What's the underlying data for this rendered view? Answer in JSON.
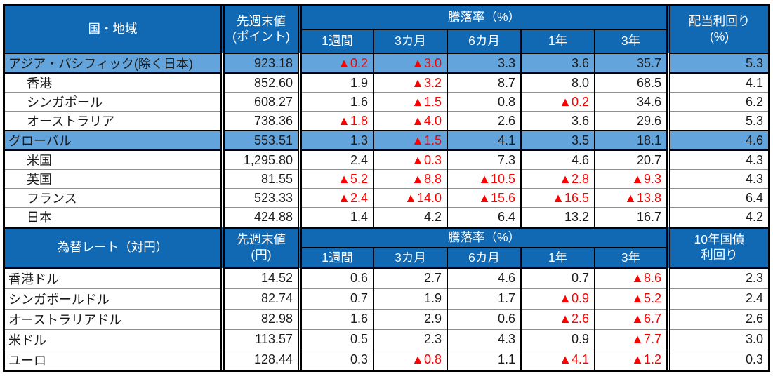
{
  "colors": {
    "header_bg": "#1169B4",
    "header_text": "#FFFFFF",
    "highlight_bg": "#62A4DB",
    "negative": "#FF0000",
    "text": "#1A1A1A",
    "row_separator": "#8F8F8F",
    "border": "#000000"
  },
  "negative_marker": "▲",
  "sections": [
    {
      "header": {
        "title": "国・地域",
        "value_line1": "先週末値",
        "value_line2": "(ポイント)",
        "group": "騰落率（%）",
        "periods": [
          "1週間",
          "3カ月",
          "6カ月",
          "1年",
          "3年"
        ],
        "last_line1": "配当利回り",
        "last_line2": "(%)"
      },
      "rows": [
        {
          "name": "アジア・パシフィック(除く日本)",
          "highlight": true,
          "indent": false,
          "values": [
            "923.18",
            "▲0.2",
            "▲3.0",
            "3.3",
            "3.6",
            "35.7",
            "5.3"
          ]
        },
        {
          "name": "香港",
          "highlight": false,
          "indent": true,
          "values": [
            "852.60",
            "1.9",
            "▲3.2",
            "8.7",
            "8.0",
            "68.5",
            "4.1"
          ]
        },
        {
          "name": "シンガポール",
          "highlight": false,
          "indent": true,
          "values": [
            "608.27",
            "1.6",
            "▲1.5",
            "0.8",
            "▲0.2",
            "34.6",
            "6.2"
          ]
        },
        {
          "name": "オーストラリア",
          "highlight": false,
          "indent": true,
          "values": [
            "738.36",
            "▲1.8",
            "▲4.0",
            "2.6",
            "3.6",
            "29.6",
            "5.3"
          ]
        },
        {
          "name": "グローバル",
          "highlight": true,
          "indent": false,
          "values": [
            "553.51",
            "1.3",
            "▲1.5",
            "4.1",
            "3.5",
            "18.1",
            "4.6"
          ]
        },
        {
          "name": "米国",
          "highlight": false,
          "indent": true,
          "values": [
            "1,295.80",
            "2.4",
            "▲0.3",
            "7.3",
            "4.6",
            "20.7",
            "4.3"
          ]
        },
        {
          "name": "英国",
          "highlight": false,
          "indent": true,
          "values": [
            "81.55",
            "▲5.2",
            "▲8.8",
            "▲10.5",
            "▲2.8",
            "▲9.3",
            "4.3"
          ]
        },
        {
          "name": "フランス",
          "highlight": false,
          "indent": true,
          "values": [
            "523.33",
            "▲2.4",
            "▲14.0",
            "▲15.6",
            "▲16.5",
            "▲13.8",
            "6.4"
          ]
        },
        {
          "name": "日本",
          "highlight": false,
          "indent": true,
          "values": [
            "424.88",
            "1.4",
            "4.2",
            "6.4",
            "13.2",
            "16.7",
            "4.2"
          ]
        }
      ]
    },
    {
      "header": {
        "title": "為替レート（対円）",
        "value_line1": "先週末値",
        "value_line2": "(円)",
        "group": "騰落率（%）",
        "periods": [
          "1週間",
          "3カ月",
          "6カ月",
          "1年",
          "3年"
        ],
        "last_line1": "10年国債",
        "last_line2": "利回り"
      },
      "rows": [
        {
          "name": "香港ドル",
          "highlight": false,
          "indent": false,
          "values": [
            "14.52",
            "0.6",
            "2.7",
            "4.6",
            "0.7",
            "▲8.6",
            "2.3"
          ]
        },
        {
          "name": "シンガポールドル",
          "highlight": false,
          "indent": false,
          "values": [
            "82.74",
            "0.7",
            "1.9",
            "1.7",
            "▲0.9",
            "▲5.2",
            "2.4"
          ]
        },
        {
          "name": "オーストラリアドル",
          "highlight": false,
          "indent": false,
          "values": [
            "82.98",
            "1.6",
            "2.9",
            "0.6",
            "▲2.6",
            "▲6.7",
            "2.6"
          ]
        },
        {
          "name": "米ドル",
          "highlight": false,
          "indent": false,
          "values": [
            "113.57",
            "0.5",
            "2.3",
            "4.3",
            "0.9",
            "▲7.7",
            "3.0"
          ]
        },
        {
          "name": "ユーロ",
          "highlight": false,
          "indent": false,
          "values": [
            "128.44",
            "0.3",
            "▲0.8",
            "1.1",
            "▲4.1",
            "▲1.2",
            "0.3"
          ]
        }
      ]
    }
  ]
}
